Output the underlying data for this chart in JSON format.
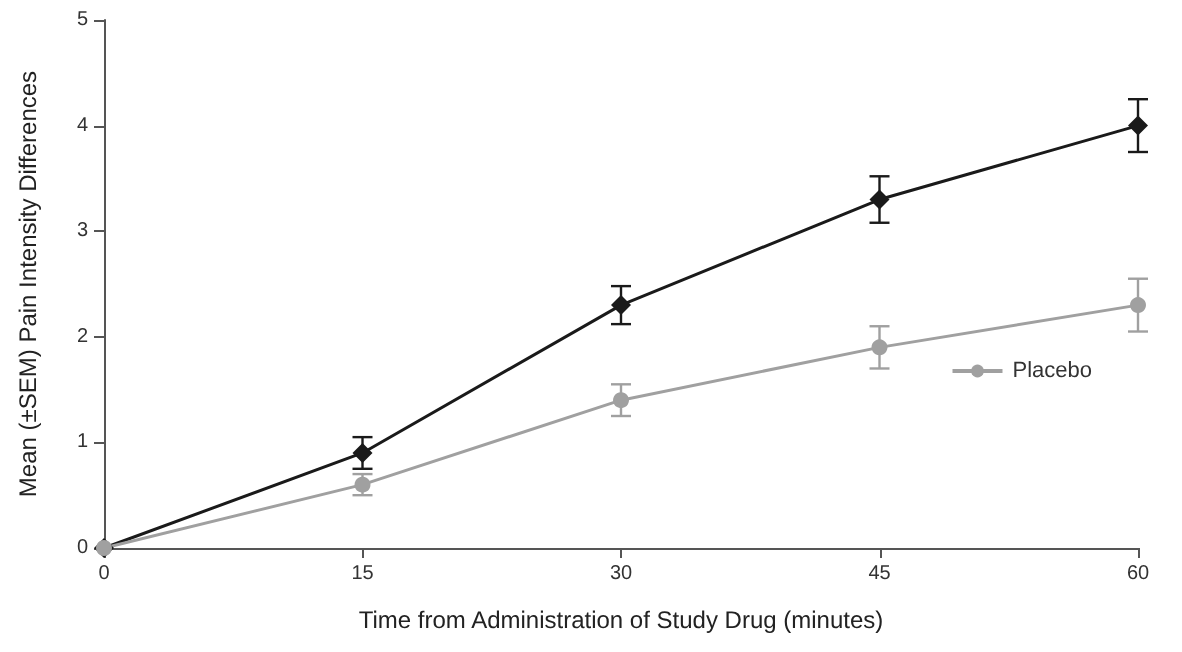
{
  "chart_data": {
    "type": "line",
    "xlabel": "Time from Administration of Study Drug (minutes)",
    "ylabel": "Mean (±SEM) Pain Intensity Differences",
    "x": [
      0,
      15,
      30,
      45,
      60
    ],
    "series": [
      {
        "color": "#1a1a1a",
        "marker": "diamond",
        "values": [
          0,
          0.9,
          2.3,
          3.3,
          4.0
        ],
        "errors": [
          null,
          0.15,
          0.18,
          0.22,
          0.25
        ]
      },
      {
        "name": "Placebo",
        "color": "#a0a0a0",
        "marker": "circle",
        "values": [
          0,
          0.6,
          1.4,
          1.9,
          2.3
        ],
        "errors": [
          null,
          0.1,
          0.15,
          0.2,
          0.25
        ]
      }
    ],
    "xlim": [
      0,
      60
    ],
    "xticks": [
      0,
      15,
      30,
      45,
      60
    ],
    "ylim": [
      0,
      5
    ],
    "yticks": [
      0,
      1,
      2,
      3,
      4,
      5
    ],
    "grid": false,
    "legend": "right"
  }
}
